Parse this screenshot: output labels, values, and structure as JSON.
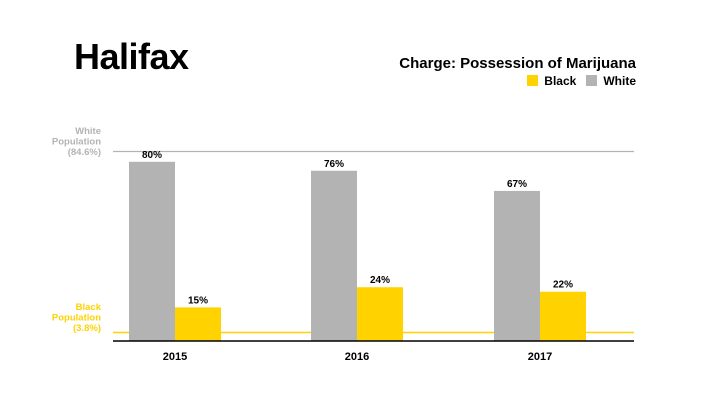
{
  "title": "Halifax",
  "chart_data": {
    "type": "bar",
    "title": "Charge: Possession of Marijuana",
    "categories": [
      "2015",
      "2016",
      "2017"
    ],
    "series": [
      {
        "name": "White",
        "color": "#b3b3b3",
        "values": [
          80,
          76,
          67
        ],
        "labels": [
          "80%",
          "76%",
          "67%"
        ]
      },
      {
        "name": "Black",
        "color": "#ffd200",
        "values": [
          15,
          24,
          22
        ],
        "labels": [
          "15%",
          "24%",
          "22%"
        ]
      }
    ],
    "legend_order": [
      "Black",
      "White"
    ],
    "legend_placement": "top-right",
    "reference_lines": [
      {
        "name": "White Population",
        "value": 84.6,
        "label_lines": [
          "White",
          "Population",
          "(84.6%)"
        ],
        "color": "#b3b3b3"
      },
      {
        "name": "Black Population",
        "value": 3.8,
        "label_lines": [
          "Black",
          "Population",
          "(3.8%)"
        ],
        "color": "#ffd200"
      }
    ],
    "xlabel": "",
    "ylabel": "",
    "ylim": [
      0,
      100
    ],
    "grid": false
  }
}
